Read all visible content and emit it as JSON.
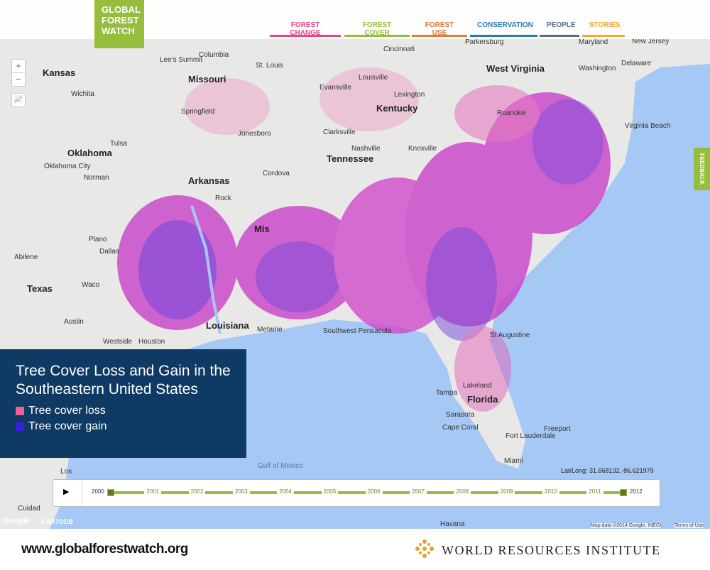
{
  "header": {
    "logo": [
      "GLOBAL",
      "FOREST",
      "WATCH"
    ],
    "nav": [
      {
        "label": "FOREST CHANGE",
        "color": "#e8468a"
      },
      {
        "label": "FOREST COVER",
        "color": "#97bd3d"
      },
      {
        "label": "FOREST USE",
        "color": "#e17a3d"
      },
      {
        "label": "CONSERVATION",
        "color": "#2a7ab8"
      },
      {
        "label": "PEOPLE",
        "color": "#5b6d82"
      },
      {
        "label": "STORIES",
        "color": "#f4a83a"
      }
    ]
  },
  "map_controls": {
    "zoom_in": "+",
    "zoom_out": "−",
    "feedback": "FEEDBACK"
  },
  "legend": {
    "title": "Tree Cover Loss and Gain in the Southeastern United States",
    "items": [
      {
        "label": "Tree cover loss",
        "color": "#f0609a"
      },
      {
        "label": "Tree cover gain",
        "color": "#3a1ee0"
      }
    ]
  },
  "places": [
    "Kansas",
    "Wichita",
    "Missouri",
    "Columbia",
    "St. Louis",
    "Springfield",
    "Cincinnati",
    "Louisville",
    "Evansville",
    "Lexington",
    "Kentucky",
    "West Virginia",
    "Roanoke",
    "Maryland",
    "New Jersey",
    "Delaware",
    "Washington",
    "Virginia Beach",
    "Oklahoma",
    "Tulsa",
    "Oklahoma City",
    "Norman",
    "Arkansas",
    "Rock",
    "Clarksville",
    "Nashville",
    "Knoxville",
    "Tennessee",
    "Jonesboro",
    "Cordova",
    "Mis",
    "Plano",
    "Dallas",
    "Abilene",
    "Texas",
    "Waco",
    "Austin",
    "Louisiana",
    "Houston",
    "Westside",
    "Metairie",
    "Southwest Pensacola",
    "St Augustine",
    "Tampa",
    "Lakeland",
    "Florida",
    "Sarasota",
    "Cape Coral",
    "Fort Lauderdale",
    "Freeport",
    "Miami",
    "Gulf of Mexico",
    "Havana",
    "Cuidad",
    "Los",
    "Parkersburg",
    "Lee's Summit"
  ],
  "timeline": {
    "play": "▶",
    "years": [
      "2000",
      "2001",
      "2002",
      "2003",
      "2004",
      "2005",
      "2006",
      "2007",
      "2008",
      "2009",
      "2010",
      "2011",
      "2012"
    ]
  },
  "coordinates": "Lat/Long: 31.668132,-86.621979",
  "attribution": {
    "google": "Google",
    "cartodb": "CARTODB",
    "map_data": "Map data ©2014 Google, INEGI",
    "terms": "Terms of Use"
  },
  "footer": {
    "url": "www.globalforestwatch.org",
    "org": "WORLD RESOURCES INSTITUTE"
  }
}
